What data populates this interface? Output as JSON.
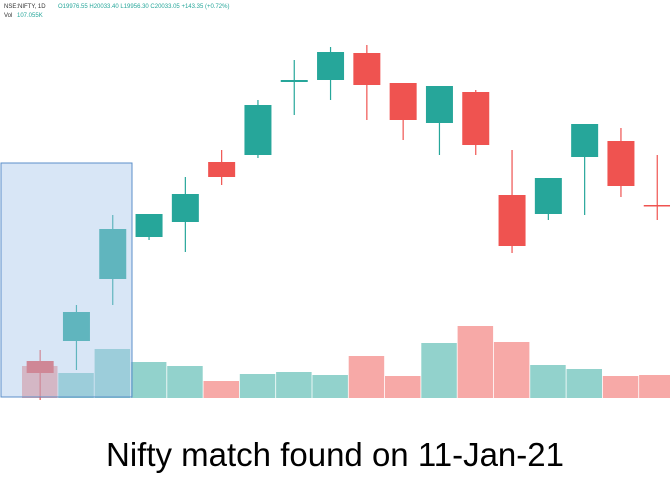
{
  "chart_data": {
    "type": "candlestick",
    "symbol": "NSE:NIFTY, 1D",
    "ohlc_text": "O19976.55 H20033.40 L19956.30 C20033.05 +143.35 (+0.72%)",
    "volume_label": "Vol",
    "volume_text": "107.055K",
    "caption": "Nifty match found on 11-Jan-21",
    "up_color": "#26a69a",
    "down_color": "#ef5350",
    "open": [
      69,
      89,
      151,
      193,
      208,
      268,
      275,
      348,
      350,
      377,
      347,
      307,
      338,
      235,
      216,
      273,
      289,
      225
    ],
    "high": [
      80,
      125,
      215,
      216,
      253,
      280,
      330,
      370,
      383,
      385,
      347,
      344,
      340,
      280,
      252,
      306,
      302,
      275
    ],
    "low": [
      30,
      60,
      125,
      190,
      178,
      245,
      272,
      315,
      330,
      310,
      290,
      275,
      275,
      177,
      210,
      215,
      233,
      210
    ],
    "close": [
      57,
      118,
      201,
      216,
      236,
      253,
      325,
      350,
      378,
      345,
      310,
      344,
      285,
      184,
      252,
      306,
      244,
      224
    ],
    "volume": [
      32,
      25,
      49,
      36,
      32,
      17,
      24,
      26,
      23,
      42,
      22,
      55,
      72,
      56,
      33,
      29,
      22,
      23
    ],
    "ylim": [
      32,
      430
    ],
    "y2lim": [
      0,
      398
    ]
  }
}
